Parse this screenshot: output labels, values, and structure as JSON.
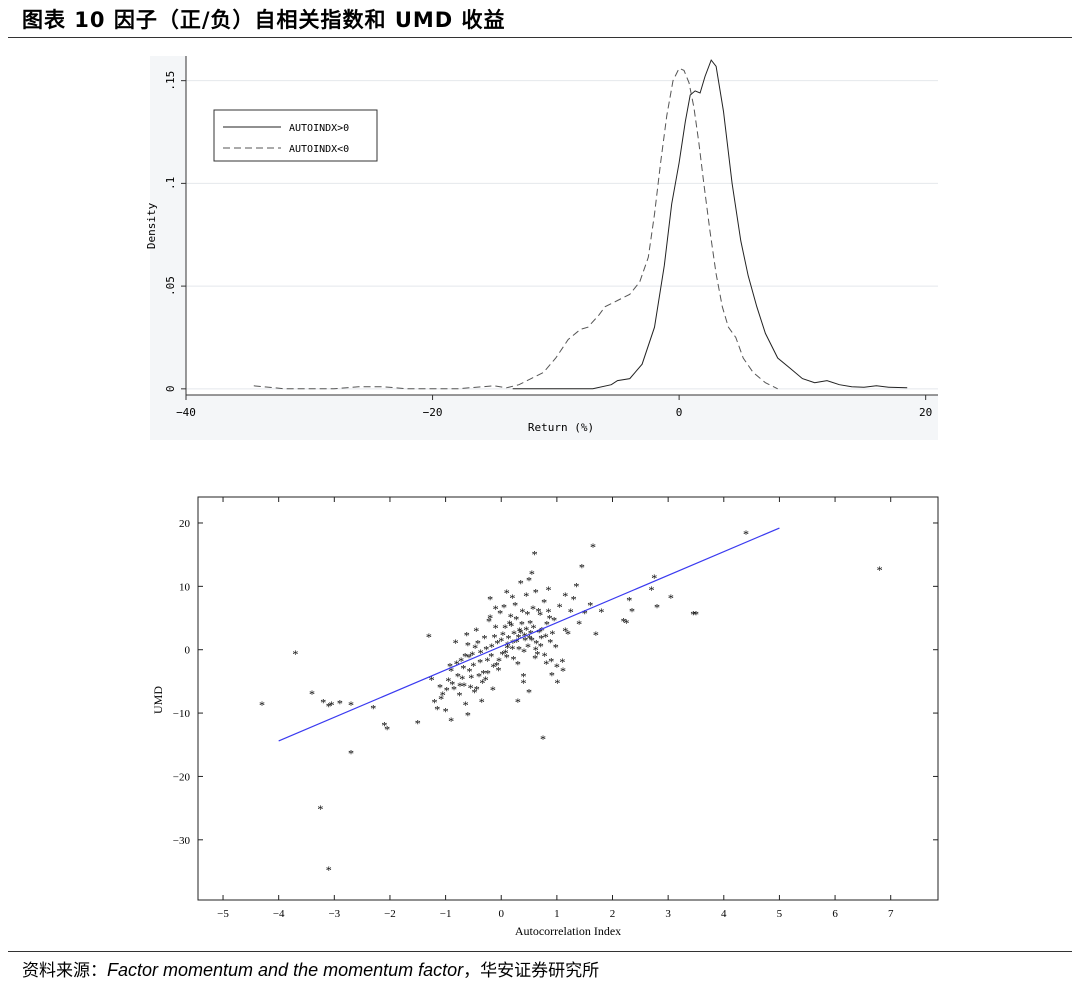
{
  "figure_title": "图表 10 因子（正/负）自相关指数和 UMD 收益",
  "source": {
    "prefix": "资料来源：",
    "citation": "Factor momentum and the momentum factor",
    "suffix": "，华安证券研究所"
  },
  "chart_data": [
    {
      "type": "line",
      "xlabel": "Return (%)",
      "ylabel": "Density",
      "xlim": [
        -40,
        21
      ],
      "ylim": [
        -0.003,
        0.162
      ],
      "x_ticks": [
        -40,
        -20,
        0,
        20
      ],
      "x_tick_labels": [
        "−40",
        "−20",
        "0",
        "20"
      ],
      "y_ticks": [
        0,
        0.05,
        0.1,
        0.15
      ],
      "y_tick_labels": [
        "0",
        ".05",
        ".1",
        ".15"
      ],
      "grid": true,
      "legend": "top-left",
      "series": [
        {
          "name": "AUTOINDX>0",
          "style": "solid",
          "points": [
            [
              -13.5,
              0
            ],
            [
              -10,
              0
            ],
            [
              -7,
              0
            ],
            [
              -5.5,
              0.002
            ],
            [
              -5,
              0.004
            ],
            [
              -4,
              0.005
            ],
            [
              -3,
              0.012
            ],
            [
              -2,
              0.03
            ],
            [
              -1.2,
              0.06
            ],
            [
              -0.6,
              0.09
            ],
            [
              0,
              0.11
            ],
            [
              0.5,
              0.13
            ],
            [
              0.9,
              0.143
            ],
            [
              1.3,
              0.145
            ],
            [
              1.7,
              0.144
            ],
            [
              2.1,
              0.152
            ],
            [
              2.6,
              0.16
            ],
            [
              3,
              0.157
            ],
            [
              3.6,
              0.135
            ],
            [
              4.3,
              0.1
            ],
            [
              5,
              0.072
            ],
            [
              5.6,
              0.055
            ],
            [
              6.3,
              0.04
            ],
            [
              7,
              0.027
            ],
            [
              8,
              0.015
            ],
            [
              9,
              0.01
            ],
            [
              10,
              0.005
            ],
            [
              11,
              0.003
            ],
            [
              12,
              0.004
            ],
            [
              13,
              0.002
            ],
            [
              14,
              0.001
            ],
            [
              15,
              0.0008
            ],
            [
              16,
              0.0015
            ],
            [
              17,
              0.0008
            ],
            [
              18.5,
              0.0005
            ]
          ]
        },
        {
          "name": "AUTOINDX<0",
          "style": "dashed",
          "points": [
            [
              -34.5,
              0.0015
            ],
            [
              -32,
              0
            ],
            [
              -30,
              0
            ],
            [
              -28,
              0
            ],
            [
              -26,
              0.001
            ],
            [
              -24,
              0.001
            ],
            [
              -22,
              0
            ],
            [
              -20,
              0
            ],
            [
              -18,
              0
            ],
            [
              -16,
              0.001
            ],
            [
              -15,
              0.0015
            ],
            [
              -14,
              0.0005
            ],
            [
              -13,
              0.002
            ],
            [
              -12,
              0.005
            ],
            [
              -11,
              0.008
            ],
            [
              -10,
              0.015
            ],
            [
              -9,
              0.024
            ],
            [
              -8,
              0.029
            ],
            [
              -7.4,
              0.03
            ],
            [
              -6.5,
              0.036
            ],
            [
              -6,
              0.04
            ],
            [
              -5,
              0.043
            ],
            [
              -4,
              0.046
            ],
            [
              -3.2,
              0.052
            ],
            [
              -2.5,
              0.064
            ],
            [
              -2,
              0.085
            ],
            [
              -1.5,
              0.11
            ],
            [
              -1,
              0.133
            ],
            [
              -0.5,
              0.15
            ],
            [
              0,
              0.156
            ],
            [
              0.4,
              0.155
            ],
            [
              0.8,
              0.149
            ],
            [
              1.2,
              0.137
            ],
            [
              1.6,
              0.12
            ],
            [
              2,
              0.1
            ],
            [
              2.5,
              0.077
            ],
            [
              3,
              0.056
            ],
            [
              3.5,
              0.04
            ],
            [
              4,
              0.03
            ],
            [
              4.6,
              0.025
            ],
            [
              5.2,
              0.015
            ],
            [
              6,
              0.008
            ],
            [
              7,
              0.003
            ],
            [
              8,
              0
            ]
          ]
        }
      ]
    },
    {
      "type": "scatter",
      "xlabel": "Autocorrelation Index",
      "ylabel": "UMD",
      "xlim": [
        -5.45,
        7.85
      ],
      "ylim": [
        -39.5,
        24.1
      ],
      "x_ticks": [
        -5,
        -4,
        -3,
        -2,
        -1,
        0,
        1,
        2,
        3,
        4,
        5,
        6,
        7
      ],
      "x_tick_labels": [
        "−5",
        "−4",
        "−3",
        "−2",
        "−1",
        "0",
        "1",
        "2",
        "3",
        "4",
        "5",
        "6",
        "7"
      ],
      "y_ticks": [
        20,
        10,
        0,
        -10,
        -20,
        -30
      ],
      "y_tick_labels": [
        "20",
        "10",
        "0",
        "−10",
        "−20",
        "−30"
      ],
      "marker": "*",
      "fit_line": {
        "color": "#3a3af0",
        "x": [
          -4,
          5
        ],
        "y": [
          -14.4,
          19.2
        ]
      },
      "points": [
        [
          -4.3,
          -8.6
        ],
        [
          -3.7,
          -0.5
        ],
        [
          -3.4,
          -6.8
        ],
        [
          -3.2,
          -8.2
        ],
        [
          -3.1,
          -8.8
        ],
        [
          -3.05,
          -8.6
        ],
        [
          -2.9,
          -8.3
        ],
        [
          -2.7,
          -8.6
        ],
        [
          -3.25,
          -25
        ],
        [
          -3.1,
          -34.6
        ],
        [
          -2.7,
          -16.2
        ],
        [
          -2.3,
          -9.1
        ],
        [
          -2.1,
          -11.8
        ],
        [
          -2.05,
          -12.4
        ],
        [
          -1.5,
          -11.5
        ],
        [
          -1.3,
          2.2
        ],
        [
          -1.2,
          -8.2
        ],
        [
          -1.15,
          -9.3
        ],
        [
          -1.1,
          -5.8
        ],
        [
          -1.05,
          -7
        ],
        [
          -1,
          -9.6
        ],
        [
          -0.95,
          -4.8
        ],
        [
          -0.9,
          -3.2
        ],
        [
          -0.85,
          -6.1
        ],
        [
          -0.8,
          -2.1
        ],
        [
          -0.75,
          -7.1
        ],
        [
          -0.7,
          -4.5
        ],
        [
          -0.65,
          -0.9
        ],
        [
          -0.6,
          0.8
        ],
        [
          -0.55,
          -5.9
        ],
        [
          -0.5,
          -2.4
        ],
        [
          -0.45,
          3.1
        ],
        [
          -0.4,
          -4.1
        ],
        [
          -0.35,
          -8.1
        ],
        [
          -0.3,
          1.9
        ],
        [
          -0.25,
          -1.6
        ],
        [
          -0.2,
          5.2
        ],
        [
          -0.15,
          -6.2
        ],
        [
          -0.1,
          3.6
        ],
        [
          -0.05,
          -3.1
        ],
        [
          0,
          1.5
        ],
        [
          0.05,
          6.8
        ],
        [
          0.1,
          -1.1
        ],
        [
          0.15,
          4.2
        ],
        [
          0.2,
          0.3
        ],
        [
          0.25,
          7.1
        ],
        [
          0.3,
          -2.2
        ],
        [
          0.35,
          2.8
        ],
        [
          0.4,
          -5.1
        ],
        [
          0.45,
          3.3
        ],
        [
          0.5,
          11.1
        ],
        [
          0.55,
          1.6
        ],
        [
          0.6,
          15.2
        ],
        [
          0.62,
          9.2
        ],
        [
          0.65,
          -0.6
        ],
        [
          0.7,
          5.6
        ],
        [
          0.75,
          -13.9
        ],
        [
          0.8,
          2.2
        ],
        [
          0.85,
          6.1
        ],
        [
          0.9,
          -1.7
        ],
        [
          0.95,
          4.8
        ],
        [
          1,
          -2.6
        ],
        [
          1.05,
          6.9
        ],
        [
          1.1,
          -1.8
        ],
        [
          1.15,
          3.1
        ],
        [
          1.2,
          2.6
        ],
        [
          1.3,
          8.1
        ],
        [
          1.4,
          4.2
        ],
        [
          1.5,
          5.9
        ],
        [
          1.45,
          13.1
        ],
        [
          1.6,
          7.1
        ],
        [
          1.65,
          16.4
        ],
        [
          1.7,
          2.5
        ],
        [
          1.8,
          6.1
        ],
        [
          2.2,
          4.6
        ],
        [
          2.25,
          4.4
        ],
        [
          2.3,
          7.9
        ],
        [
          2.35,
          6.2
        ],
        [
          2.7,
          9.6
        ],
        [
          2.75,
          11.5
        ],
        [
          2.8,
          6.8
        ],
        [
          3.05,
          8.3
        ],
        [
          3.45,
          5.7
        ],
        [
          3.5,
          5.7
        ],
        [
          4.4,
          18.4
        ],
        [
          6.8,
          12.7
        ],
        [
          -0.92,
          -2.5
        ],
        [
          -0.82,
          1.2
        ],
        [
          -0.72,
          -1.6
        ],
        [
          -0.62,
          2.4
        ],
        [
          -0.52,
          -0.7
        ],
        [
          -0.42,
          1.1
        ],
        [
          -0.32,
          -3.6
        ],
        [
          -0.22,
          4.6
        ],
        [
          -0.12,
          2.1
        ],
        [
          -0.02,
          5.9
        ],
        [
          0.08,
          -0.4
        ],
        [
          0.18,
          3.9
        ],
        [
          0.28,
          1.4
        ],
        [
          0.38,
          6.1
        ],
        [
          0.48,
          0.6
        ],
        [
          0.58,
          3.6
        ],
        [
          0.68,
          2.9
        ],
        [
          0.78,
          -0.8
        ],
        [
          0.88,
          1.3
        ],
        [
          0.98,
          0.5
        ],
        [
          -0.48,
          -6.6
        ],
        [
          -0.38,
          -1.9
        ],
        [
          -0.28,
          -4.6
        ],
        [
          -0.18,
          -0.9
        ],
        [
          -0.08,
          -2.3
        ],
        [
          0.02,
          -0.6
        ],
        [
          0.12,
          0.9
        ],
        [
          0.22,
          -1.4
        ],
        [
          0.32,
          0.2
        ],
        [
          0.42,
          2.3
        ],
        [
          0.52,
          4.3
        ],
        [
          0.62,
          0.1
        ],
        [
          0.72,
          1.9
        ],
        [
          0.82,
          4.1
        ],
        [
          0.92,
          2.6
        ],
        [
          -0.58,
          -1.1
        ],
        [
          -0.68,
          -2.8
        ],
        [
          -0.78,
          -4.1
        ],
        [
          -0.88,
          -5.3
        ],
        [
          -0.98,
          -6.3
        ],
        [
          -1.08,
          -7.6
        ],
        [
          0.03,
          2.5
        ],
        [
          0.13,
          1.9
        ],
        [
          0.23,
          2.6
        ],
        [
          0.33,
          3.1
        ],
        [
          0.43,
          1.6
        ],
        [
          0.53,
          2.7
        ],
        [
          0.63,
          1.1
        ],
        [
          0.73,
          3.2
        ],
        [
          -0.07,
          1.1
        ],
        [
          -0.17,
          0.6
        ],
        [
          -0.27,
          0.2
        ],
        [
          -0.37,
          -0.4
        ],
        [
          -0.47,
          0.4
        ],
        [
          -0.57,
          -3.3
        ],
        [
          -0.67,
          -5.6
        ],
        [
          0.07,
          3.6
        ],
        [
          0.17,
          5.3
        ],
        [
          0.27,
          4.9
        ],
        [
          0.37,
          4.1
        ],
        [
          0.47,
          5.7
        ],
        [
          0.57,
          6.6
        ],
        [
          0.67,
          6.2
        ],
        [
          0.77,
          7.6
        ],
        [
          0.87,
          5.1
        ],
        [
          -0.04,
          -1.6
        ],
        [
          -0.14,
          -2.6
        ],
        [
          -0.24,
          -3.6
        ],
        [
          -0.34,
          -5.1
        ],
        [
          -0.44,
          -6.1
        ],
        [
          -0.54,
          -4.3
        ],
        [
          -0.64,
          -8.6
        ],
        [
          -0.74,
          -5.6
        ],
        [
          0.11,
          0.4
        ],
        [
          0.21,
          1.2
        ],
        [
          0.31,
          2.1
        ],
        [
          0.41,
          -0.2
        ],
        [
          0.51,
          1.9
        ],
        [
          0.61,
          -1.2
        ],
        [
          0.71,
          0.7
        ],
        [
          0.81,
          -2.1
        ],
        [
          0.91,
          -3.9
        ],
        [
          1.01,
          -5.1
        ],
        [
          1.11,
          -3.2
        ],
        [
          -0.9,
          -11.1
        ],
        [
          -0.6,
          -10.2
        ],
        [
          0.3,
          -8.1
        ],
        [
          0.4,
          -4.1
        ],
        [
          0.5,
          -6.6
        ],
        [
          -1.25,
          -4.6
        ],
        [
          -0.2,
          8.1
        ],
        [
          -0.1,
          6.6
        ],
        [
          0.1,
          9.1
        ],
        [
          0.2,
          8.3
        ],
        [
          0.35,
          10.6
        ],
        [
          0.45,
          8.6
        ],
        [
          0.55,
          12.1
        ],
        [
          0.85,
          9.6
        ],
        [
          1.15,
          8.6
        ],
        [
          1.25,
          6.1
        ],
        [
          1.35,
          10.1
        ]
      ]
    }
  ]
}
